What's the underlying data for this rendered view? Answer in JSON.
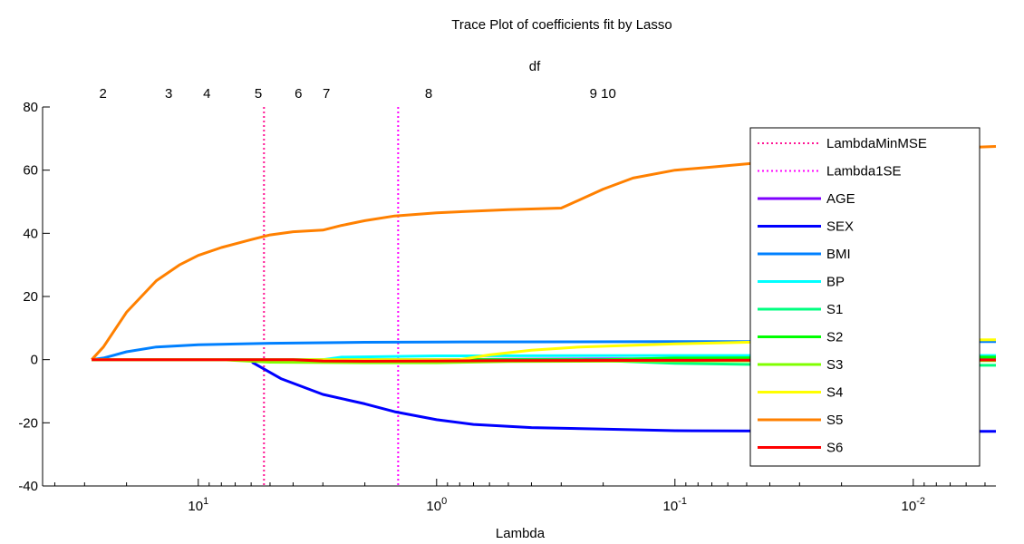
{
  "chart_data": {
    "type": "line",
    "title": "Trace Plot of coefficients fit by Lasso",
    "xlabel": "Lambda",
    "ylabel": "",
    "top_axis_label": "df",
    "x_scale": "log",
    "x_reversed": true,
    "xlim": [
      45,
      0.0045
    ],
    "ylim": [
      -40,
      80
    ],
    "grid": false,
    "legend_position": "right",
    "x_ticks": [
      {
        "value": 10,
        "base": "10",
        "exp": "1"
      },
      {
        "value": 1,
        "base": "10",
        "exp": "0"
      },
      {
        "value": 0.1,
        "base": "10",
        "exp": "-1"
      },
      {
        "value": 0.01,
        "base": "10",
        "exp": "-2"
      }
    ],
    "y_ticks": [
      -40,
      -20,
      0,
      20,
      40,
      60,
      80
    ],
    "df_ticks": [
      {
        "lambda": 25.1,
        "label": "2"
      },
      {
        "lambda": 13.3,
        "label": "3"
      },
      {
        "lambda": 9.2,
        "label": "4"
      },
      {
        "lambda": 5.6,
        "label": "5"
      },
      {
        "lambda": 3.8,
        "label": "6"
      },
      {
        "lambda": 2.9,
        "label": "7"
      },
      {
        "lambda": 1.08,
        "label": "8"
      },
      {
        "lambda": 0.22,
        "label": "9"
      },
      {
        "lambda": 0.19,
        "label": "10"
      }
    ],
    "vlines": [
      {
        "name": "LambdaMinMSE",
        "x": 5.3,
        "color": "#ff1493"
      },
      {
        "name": "Lambda1SE",
        "x": 1.45,
        "color": "#ff00ff"
      }
    ],
    "series": [
      {
        "name": "AGE",
        "color": "#7f00ff",
        "x": [
          28,
          15,
          1.5,
          0.1,
          0.0045
        ],
        "y": [
          0,
          0,
          0,
          0.3,
          0.3
        ]
      },
      {
        "name": "SEX",
        "color": "#0000ff",
        "x": [
          28,
          6,
          5.9,
          4.5,
          3,
          2,
          1.5,
          1,
          0.7,
          0.4,
          0.2,
          0.1,
          0.04,
          0.02,
          0.01,
          0.0045
        ],
        "y": [
          0,
          0,
          -1,
          -6,
          -11,
          -14,
          -16.5,
          -19,
          -20.5,
          -21.5,
          -22,
          -22.5,
          -22.6,
          -22.6,
          -22.7,
          -22.7
        ]
      },
      {
        "name": "BMI",
        "color": "#0080ff",
        "x": [
          28,
          25,
          20,
          15,
          10,
          5,
          2,
          1,
          0.1,
          0.01,
          0.0045
        ],
        "y": [
          0,
          0.5,
          2.5,
          4,
          4.7,
          5.2,
          5.5,
          5.6,
          5.7,
          5.7,
          5.7
        ]
      },
      {
        "name": "BP",
        "color": "#00ffff",
        "x": [
          28,
          3,
          2.5,
          1,
          0.1,
          0.01,
          0.0045
        ],
        "y": [
          0,
          0,
          0.8,
          1.2,
          1.3,
          1.3,
          1.3
        ]
      },
      {
        "name": "S1",
        "color": "#00ff80",
        "x": [
          28,
          0.25,
          0.2,
          0.1,
          0.05,
          0.01,
          0.0045
        ],
        "y": [
          0,
          0,
          -0.3,
          -1.2,
          -1.5,
          -1.8,
          -1.8
        ]
      },
      {
        "name": "S2",
        "color": "#00ff00",
        "x": [
          28,
          0.2,
          0.1,
          0.01,
          0.0045
        ],
        "y": [
          0,
          0,
          0.5,
          0.8,
          0.8
        ]
      },
      {
        "name": "S3",
        "color": "#80ff00",
        "x": [
          28,
          8,
          5,
          2,
          1,
          0.5,
          0.1,
          0.01,
          0.0045
        ],
        "y": [
          0,
          0,
          -0.8,
          -1,
          -1,
          -0.6,
          -0.4,
          -0.3,
          -0.3
        ]
      },
      {
        "name": "S4",
        "color": "#ffff00",
        "x": [
          28,
          0.8,
          0.6,
          0.4,
          0.25,
          0.1,
          0.05,
          0.02,
          0.01,
          0.0045
        ],
        "y": [
          0,
          0,
          1.5,
          3,
          4,
          5,
          5.5,
          6,
          6.2,
          6.3
        ]
      },
      {
        "name": "S5",
        "color": "#ff8000",
        "x": [
          28,
          25,
          20,
          15,
          12,
          10,
          8,
          6,
          5,
          4,
          3,
          2.5,
          2,
          1.5,
          1,
          0.5,
          0.3,
          0.28,
          0.2,
          0.15,
          0.1,
          0.07,
          0.05,
          0.03,
          0.01,
          0.0045
        ],
        "y": [
          0,
          4,
          15,
          25,
          30,
          33,
          35.5,
          38,
          39.5,
          40.5,
          41,
          42.5,
          44,
          45.5,
          46.5,
          47.5,
          48,
          49,
          54,
          57.5,
          60,
          61,
          62,
          63.5,
          66.5,
          67.5
        ]
      },
      {
        "name": "S6",
        "color": "#ff0000",
        "x": [
          28,
          4,
          3,
          2,
          1,
          0.5,
          0.1,
          0.01,
          0.0045
        ],
        "y": [
          0,
          0,
          -0.4,
          -0.5,
          -0.4,
          -0.3,
          -0.2,
          -0.1,
          -0.1
        ]
      }
    ]
  }
}
